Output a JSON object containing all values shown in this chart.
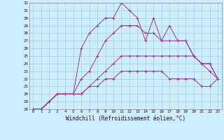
{
  "xlabel": "Windchill (Refroidissement éolien,°C)",
  "background_color": "#cceeff",
  "grid_color": "#aacccc",
  "line_color": "#993399",
  "xlim": [
    -0.5,
    23.5
  ],
  "ylim": [
    18,
    32
  ],
  "xticks": [
    0,
    1,
    2,
    3,
    4,
    5,
    6,
    7,
    8,
    9,
    10,
    11,
    12,
    13,
    14,
    15,
    16,
    17,
    18,
    19,
    20,
    21,
    22,
    23
  ],
  "yticks": [
    18,
    19,
    20,
    21,
    22,
    23,
    24,
    25,
    26,
    27,
    28,
    29,
    30,
    31,
    32
  ],
  "series": [
    [
      18,
      18,
      19,
      20,
      20,
      20,
      26,
      28,
      29,
      30,
      30,
      32,
      31,
      30,
      27,
      30,
      27,
      29,
      27,
      27,
      25,
      24,
      24,
      22
    ],
    [
      18,
      18,
      19,
      20,
      20,
      20,
      22,
      23,
      25,
      27,
      28,
      29,
      29,
      29,
      28,
      28,
      27,
      27,
      27,
      27,
      25,
      24,
      24,
      22
    ],
    [
      18,
      18,
      19,
      20,
      20,
      20,
      20,
      21,
      22,
      23,
      24,
      25,
      25,
      25,
      25,
      25,
      25,
      25,
      25,
      25,
      25,
      24,
      23,
      22
    ],
    [
      18,
      18,
      19,
      20,
      20,
      20,
      20,
      21,
      21,
      22,
      22,
      23,
      23,
      23,
      23,
      23,
      23,
      22,
      22,
      22,
      22,
      21,
      21,
      22
    ]
  ]
}
